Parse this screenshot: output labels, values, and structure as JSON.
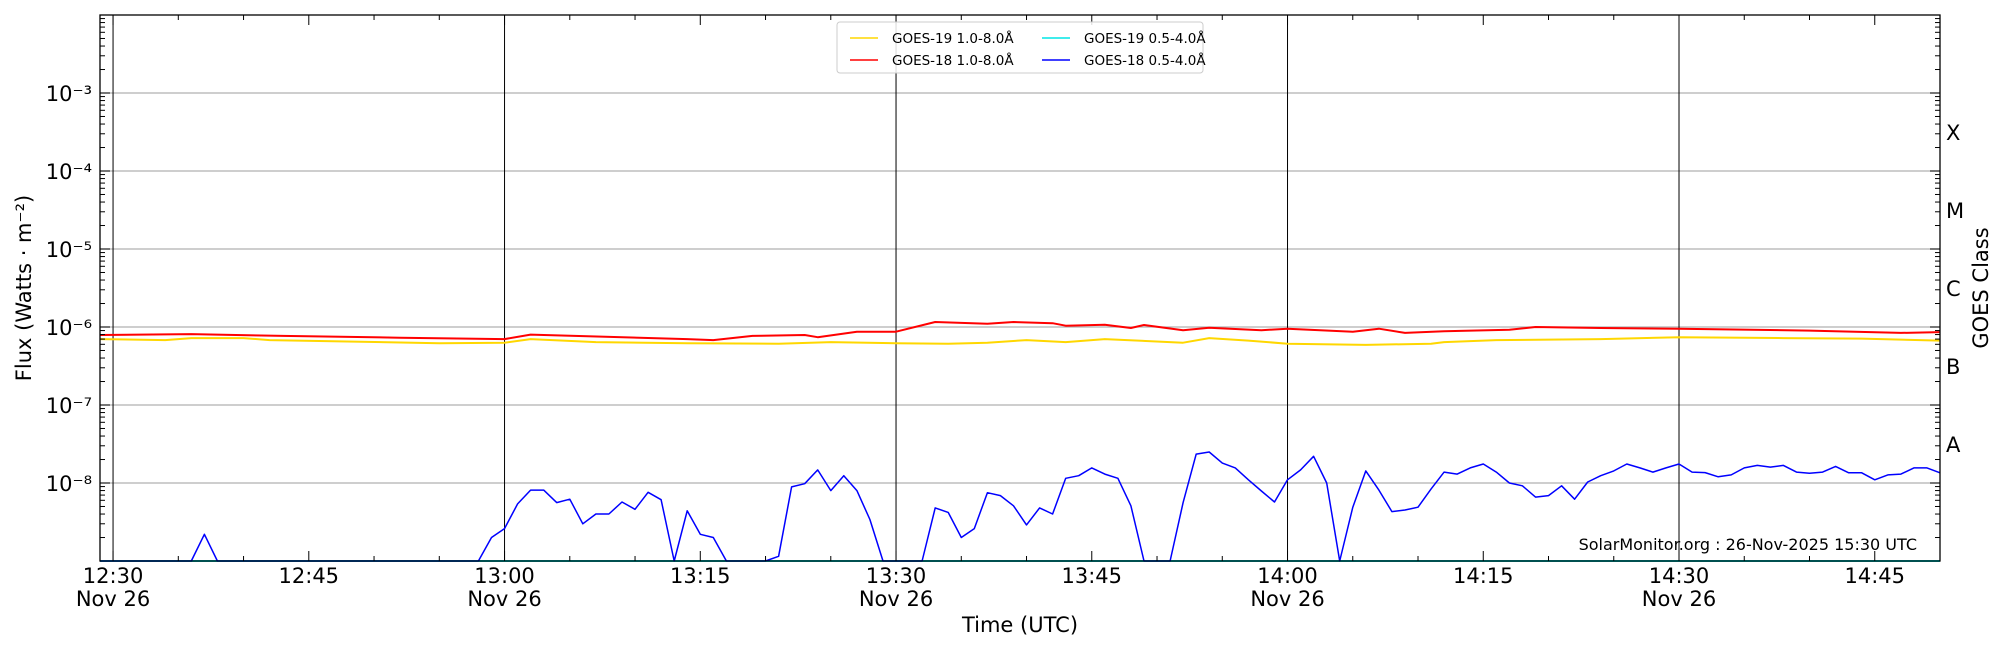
{
  "chart_data": {
    "type": "line",
    "xlabel": "Time (UTC)",
    "ylabel": "Flux (Watts · m⁻²)",
    "ylabel_right": "GOES Class",
    "y_scale": "log",
    "ylim": [
      1e-09,
      0.01
    ],
    "xlim": [
      "12:29",
      "14:50"
    ],
    "grid": "horizontal at decades; vertical black lines at 30-minute marks",
    "legend_position": "top-center",
    "y_ticks": [
      {
        "value": 0.001,
        "label": "10⁻³"
      },
      {
        "value": 0.0001,
        "label": "10⁻⁴"
      },
      {
        "value": 1e-05,
        "label": "10⁻⁵"
      },
      {
        "value": 1e-06,
        "label": "10⁻⁶"
      },
      {
        "value": 1e-07,
        "label": "10⁻⁷"
      },
      {
        "value": 1e-08,
        "label": "10⁻⁸"
      }
    ],
    "x_ticks": [
      {
        "time": "12:30",
        "label": "12:30",
        "sublabel": "Nov 26"
      },
      {
        "time": "12:45",
        "label": "12:45",
        "sublabel": ""
      },
      {
        "time": "13:00",
        "label": "13:00",
        "sublabel": "Nov 26"
      },
      {
        "time": "13:15",
        "label": "13:15",
        "sublabel": ""
      },
      {
        "time": "13:30",
        "label": "13:30",
        "sublabel": "Nov 26"
      },
      {
        "time": "13:45",
        "label": "13:45",
        "sublabel": ""
      },
      {
        "time": "14:00",
        "label": "14:00",
        "sublabel": "Nov 26"
      },
      {
        "time": "14:15",
        "label": "14:15",
        "sublabel": ""
      },
      {
        "time": "14:30",
        "label": "14:30",
        "sublabel": "Nov 26"
      },
      {
        "time": "14:45",
        "label": "14:45",
        "sublabel": ""
      }
    ],
    "class_labels": [
      {
        "label": "A",
        "low": 1e-08
      },
      {
        "label": "B",
        "low": 1e-07
      },
      {
        "label": "C",
        "low": 1e-06
      },
      {
        "label": "M",
        "low": 1e-05
      },
      {
        "label": "X",
        "low": 0.0001
      }
    ],
    "annotation": "SolarMonitor.org : 26-Nov-2025 15:30 UTC",
    "series": [
      {
        "name": "GOES-19 1.0-8.0Å",
        "color": "#ffd700",
        "points": [
          [
            "12:29",
            7e-07
          ],
          [
            "12:34",
            6.8e-07
          ],
          [
            "12:36",
            7.2e-07
          ],
          [
            "12:40",
            7.2e-07
          ],
          [
            "12:42",
            6.8e-07
          ],
          [
            "12:55",
            6.2e-07
          ],
          [
            "13:00",
            6.3e-07
          ],
          [
            "13:02",
            7e-07
          ],
          [
            "13:07",
            6.4e-07
          ],
          [
            "13:14",
            6.2e-07
          ],
          [
            "13:21",
            6.1e-07
          ],
          [
            "13:25",
            6.4e-07
          ],
          [
            "13:30",
            6.2e-07
          ],
          [
            "13:34",
            6.1e-07
          ],
          [
            "13:37",
            6.3e-07
          ],
          [
            "13:40",
            6.8e-07
          ],
          [
            "13:43",
            6.4e-07
          ],
          [
            "13:46",
            7e-07
          ],
          [
            "13:52",
            6.3e-07
          ],
          [
            "13:54",
            7.2e-07
          ],
          [
            "13:57",
            6.7e-07
          ],
          [
            "14:00",
            6.1e-07
          ],
          [
            "14:06",
            5.9e-07
          ],
          [
            "14:11",
            6.1e-07
          ],
          [
            "14:12",
            6.4e-07
          ],
          [
            "14:16",
            6.8e-07
          ],
          [
            "14:24",
            7e-07
          ],
          [
            "14:30",
            7.4e-07
          ],
          [
            "14:38",
            7.2e-07
          ],
          [
            "14:44",
            7.1e-07
          ],
          [
            "14:50",
            6.7e-07
          ]
        ]
      },
      {
        "name": "GOES-18 1.0-8.0Å",
        "color": "#ff0000",
        "points": [
          [
            "12:29",
            7.9e-07
          ],
          [
            "12:36",
            8.1e-07
          ],
          [
            "12:43",
            7.7e-07
          ],
          [
            "12:52",
            7.3e-07
          ],
          [
            "13:00",
            7e-07
          ],
          [
            "13:02",
            8e-07
          ],
          [
            "13:14",
            7e-07
          ],
          [
            "13:16",
            6.8e-07
          ],
          [
            "13:19",
            7.7e-07
          ],
          [
            "13:23",
            7.9e-07
          ],
          [
            "13:24",
            7.4e-07
          ],
          [
            "13:27",
            8.7e-07
          ],
          [
            "13:30",
            8.7e-07
          ],
          [
            "13:33",
            1.16e-06
          ],
          [
            "13:37",
            1.1e-06
          ],
          [
            "13:39",
            1.16e-06
          ],
          [
            "13:42",
            1.12e-06
          ],
          [
            "13:43",
            1.04e-06
          ],
          [
            "13:46",
            1.07e-06
          ],
          [
            "13:48",
            9.7e-07
          ],
          [
            "13:49",
            1.06e-06
          ],
          [
            "13:52",
            9.1e-07
          ],
          [
            "13:54",
            9.8e-07
          ],
          [
            "13:58",
            9.1e-07
          ],
          [
            "14:00",
            9.5e-07
          ],
          [
            "14:05",
            8.7e-07
          ],
          [
            "14:07",
            9.5e-07
          ],
          [
            "14:09",
            8.4e-07
          ],
          [
            "14:12",
            8.8e-07
          ],
          [
            "14:17",
            9.2e-07
          ],
          [
            "14:19",
            1e-06
          ],
          [
            "14:24",
            9.7e-07
          ],
          [
            "14:30",
            9.5e-07
          ],
          [
            "14:40",
            9e-07
          ],
          [
            "14:47",
            8.4e-07
          ],
          [
            "14:50",
            8.6e-07
          ]
        ]
      },
      {
        "name": "GOES-19 0.5-4.0Å",
        "color": "#00e5e5",
        "points": [
          [
            "12:29",
            1e-09
          ],
          [
            "14:50",
            1e-09
          ]
        ]
      },
      {
        "name": "GOES-18 0.5-4.0Å",
        "color": "#0000ff",
        "points": [
          [
            "12:29",
            1e-09
          ],
          [
            "12:36",
            1e-09
          ],
          [
            "12:37",
            2.2e-09
          ],
          [
            "12:38",
            1e-09
          ],
          [
            "12:58",
            1e-09
          ],
          [
            "12:59",
            2e-09
          ],
          [
            "13:00",
            2.6e-09
          ],
          [
            "13:01",
            5.4e-09
          ],
          [
            "13:02",
            8.1e-09
          ],
          [
            "13:03",
            8.1e-09
          ],
          [
            "13:04",
            5.6e-09
          ],
          [
            "13:05",
            6.2e-09
          ],
          [
            "13:06",
            3e-09
          ],
          [
            "13:07",
            4e-09
          ],
          [
            "13:08",
            4e-09
          ],
          [
            "13:09",
            5.7e-09
          ],
          [
            "13:10",
            4.6e-09
          ],
          [
            "13:11",
            7.6e-09
          ],
          [
            "13:12",
            6.1e-09
          ],
          [
            "13:13",
            1e-09
          ],
          [
            "13:14",
            4.4e-09
          ],
          [
            "13:15",
            2.2e-09
          ],
          [
            "13:16",
            2e-09
          ],
          [
            "13:17",
            1e-09
          ],
          [
            "13:20",
            1e-09
          ],
          [
            "13:21",
            1.15e-09
          ],
          [
            "13:22",
            8.9e-09
          ],
          [
            "13:23",
            9.8e-09
          ],
          [
            "13:24",
            1.47e-08
          ],
          [
            "13:25",
            8e-09
          ],
          [
            "13:26",
            1.24e-08
          ],
          [
            "13:27",
            8e-09
          ],
          [
            "13:28",
            3.4e-09
          ],
          [
            "13:29",
            1e-09
          ],
          [
            "13:32",
            1e-09
          ],
          [
            "13:33",
            4.8e-09
          ],
          [
            "13:34",
            4.2e-09
          ],
          [
            "13:35",
            2e-09
          ],
          [
            "13:36",
            2.6e-09
          ],
          [
            "13:37",
            7.5e-09
          ],
          [
            "13:38",
            6.9e-09
          ],
          [
            "13:39",
            5.1e-09
          ],
          [
            "13:40",
            2.9e-09
          ],
          [
            "13:41",
            4.8e-09
          ],
          [
            "13:42",
            4e-09
          ],
          [
            "13:43",
            1.15e-08
          ],
          [
            "13:44",
            1.24e-08
          ],
          [
            "13:45",
            1.56e-08
          ],
          [
            "13:46",
            1.3e-08
          ],
          [
            "13:47",
            1.15e-08
          ],
          [
            "13:48",
            5.1e-09
          ],
          [
            "13:49",
            1e-09
          ],
          [
            "13:51",
            1e-09
          ],
          [
            "13:52",
            5.6e-09
          ],
          [
            "13:53",
            2.35e-08
          ],
          [
            "13:54",
            2.5e-08
          ],
          [
            "13:55",
            1.8e-08
          ],
          [
            "13:56",
            1.56e-08
          ],
          [
            "13:57",
            1.1e-08
          ],
          [
            "13:58",
            7.9e-09
          ],
          [
            "13:59",
            5.7e-09
          ],
          [
            "14:00",
            1.1e-08
          ],
          [
            "14:01",
            1.47e-08
          ],
          [
            "14:02",
            2.2e-08
          ],
          [
            "14:03",
            1e-08
          ],
          [
            "14:04",
            1e-09
          ],
          [
            "14:05",
            4.9e-09
          ],
          [
            "14:06",
            1.43e-08
          ],
          [
            "14:07",
            8.1e-09
          ],
          [
            "14:08",
            4.3e-09
          ],
          [
            "14:09",
            4.5e-09
          ],
          [
            "14:10",
            4.9e-09
          ],
          [
            "14:11",
            8.4e-09
          ],
          [
            "14:12",
            1.38e-08
          ],
          [
            "14:13",
            1.3e-08
          ],
          [
            "14:14",
            1.56e-08
          ],
          [
            "14:15",
            1.75e-08
          ],
          [
            "14:16",
            1.38e-08
          ],
          [
            "14:17",
            1e-08
          ],
          [
            "14:18",
            9.2e-09
          ],
          [
            "14:19",
            6.6e-09
          ],
          [
            "14:20",
            6.9e-09
          ],
          [
            "14:21",
            9.2e-09
          ],
          [
            "14:22",
            6.2e-09
          ],
          [
            "14:23",
            1.03e-08
          ],
          [
            "14:24",
            1.24e-08
          ],
          [
            "14:25",
            1.43e-08
          ],
          [
            "14:26",
            1.75e-08
          ],
          [
            "14:27",
            1.56e-08
          ],
          [
            "14:28",
            1.38e-08
          ],
          [
            "14:29",
            1.56e-08
          ],
          [
            "14:30",
            1.75e-08
          ],
          [
            "14:31",
            1.38e-08
          ],
          [
            "14:32",
            1.36e-08
          ],
          [
            "14:33",
            1.2e-08
          ],
          [
            "14:34",
            1.27e-08
          ],
          [
            "14:35",
            1.56e-08
          ],
          [
            "14:36",
            1.68e-08
          ],
          [
            "14:37",
            1.6e-08
          ],
          [
            "14:38",
            1.68e-08
          ],
          [
            "14:39",
            1.38e-08
          ],
          [
            "14:40",
            1.33e-08
          ],
          [
            "14:41",
            1.38e-08
          ],
          [
            "14:42",
            1.63e-08
          ],
          [
            "14:43",
            1.35e-08
          ],
          [
            "14:44",
            1.35e-08
          ],
          [
            "14:45",
            1.1e-08
          ],
          [
            "14:46",
            1.27e-08
          ],
          [
            "14:47",
            1.3e-08
          ],
          [
            "14:48",
            1.56e-08
          ],
          [
            "14:49",
            1.56e-08
          ],
          [
            "14:50",
            1.35e-08
          ]
        ]
      }
    ]
  }
}
